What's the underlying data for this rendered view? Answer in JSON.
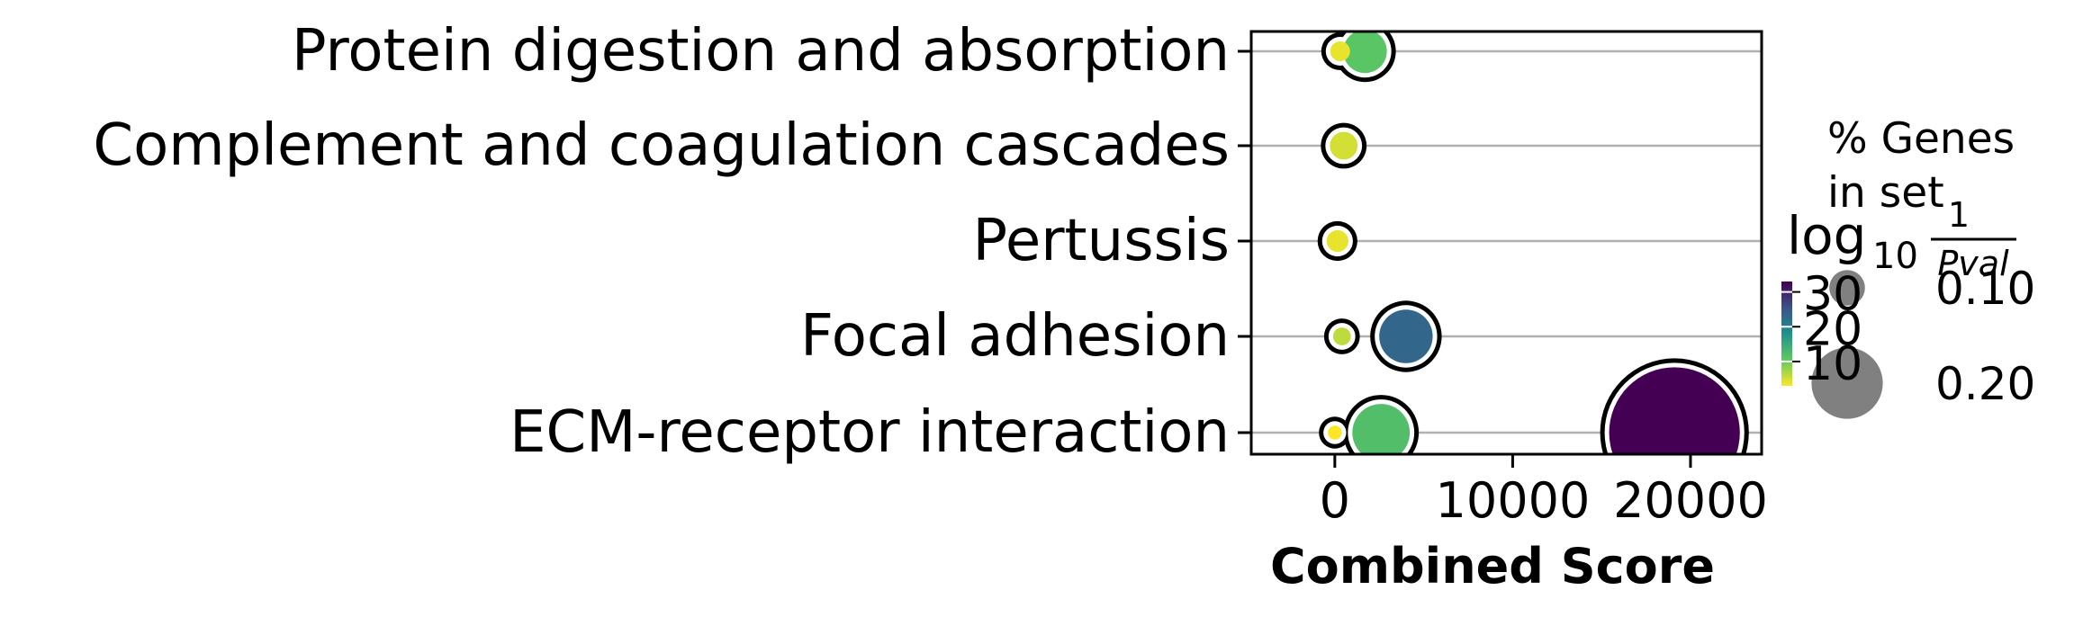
{
  "chart_data": {
    "type": "scatter",
    "xlabel": "Combined Score",
    "categories": [
      "Protein digestion and absorption",
      "Complement and coagulation cascades",
      "Pertussis",
      "Focal adhesion",
      "ECM-receptor interaction"
    ],
    "xlim": [
      -4700,
      24000
    ],
    "xticks": [
      0,
      10000,
      20000
    ],
    "xtick_labels": [
      "0",
      "10000",
      "20000"
    ],
    "grid": "horizontal",
    "color_metric": {
      "title": "log10 1/Pval",
      "ticks": [
        10,
        20,
        30
      ],
      "range": [
        3,
        33
      ],
      "colormap": "viridis"
    },
    "size_metric": {
      "title": "% Genes in set",
      "legend_values": [
        0.1,
        0.2
      ],
      "legend_labels": [
        "0.10",
        "0.20"
      ]
    },
    "points": [
      {
        "category": "Protein digestion and absorption",
        "x": 1700,
        "size": 0.11,
        "log10_inv_pval": 11
      },
      {
        "category": "Protein digestion and absorption",
        "x": 300,
        "size": 0.05,
        "log10_inv_pval": 4
      },
      {
        "category": "Complement and coagulation cascades",
        "x": 500,
        "size": 0.07,
        "log10_inv_pval": 5
      },
      {
        "category": "Pertussis",
        "x": 150,
        "size": 0.055,
        "log10_inv_pval": 4
      },
      {
        "category": "Focal adhesion",
        "x": 4000,
        "size": 0.135,
        "log10_inv_pval": 23
      },
      {
        "category": "Focal adhesion",
        "x": 400,
        "size": 0.045,
        "log10_inv_pval": 6
      },
      {
        "category": "ECM-receptor interaction",
        "x": 19100,
        "size": 0.33,
        "log10_inv_pval": 33
      },
      {
        "category": "ECM-receptor interaction",
        "x": 2600,
        "size": 0.145,
        "log10_inv_pval": 12
      },
      {
        "category": "ECM-receptor interaction",
        "x": 0,
        "size": 0.035,
        "log10_inv_pval": 3
      }
    ]
  }
}
